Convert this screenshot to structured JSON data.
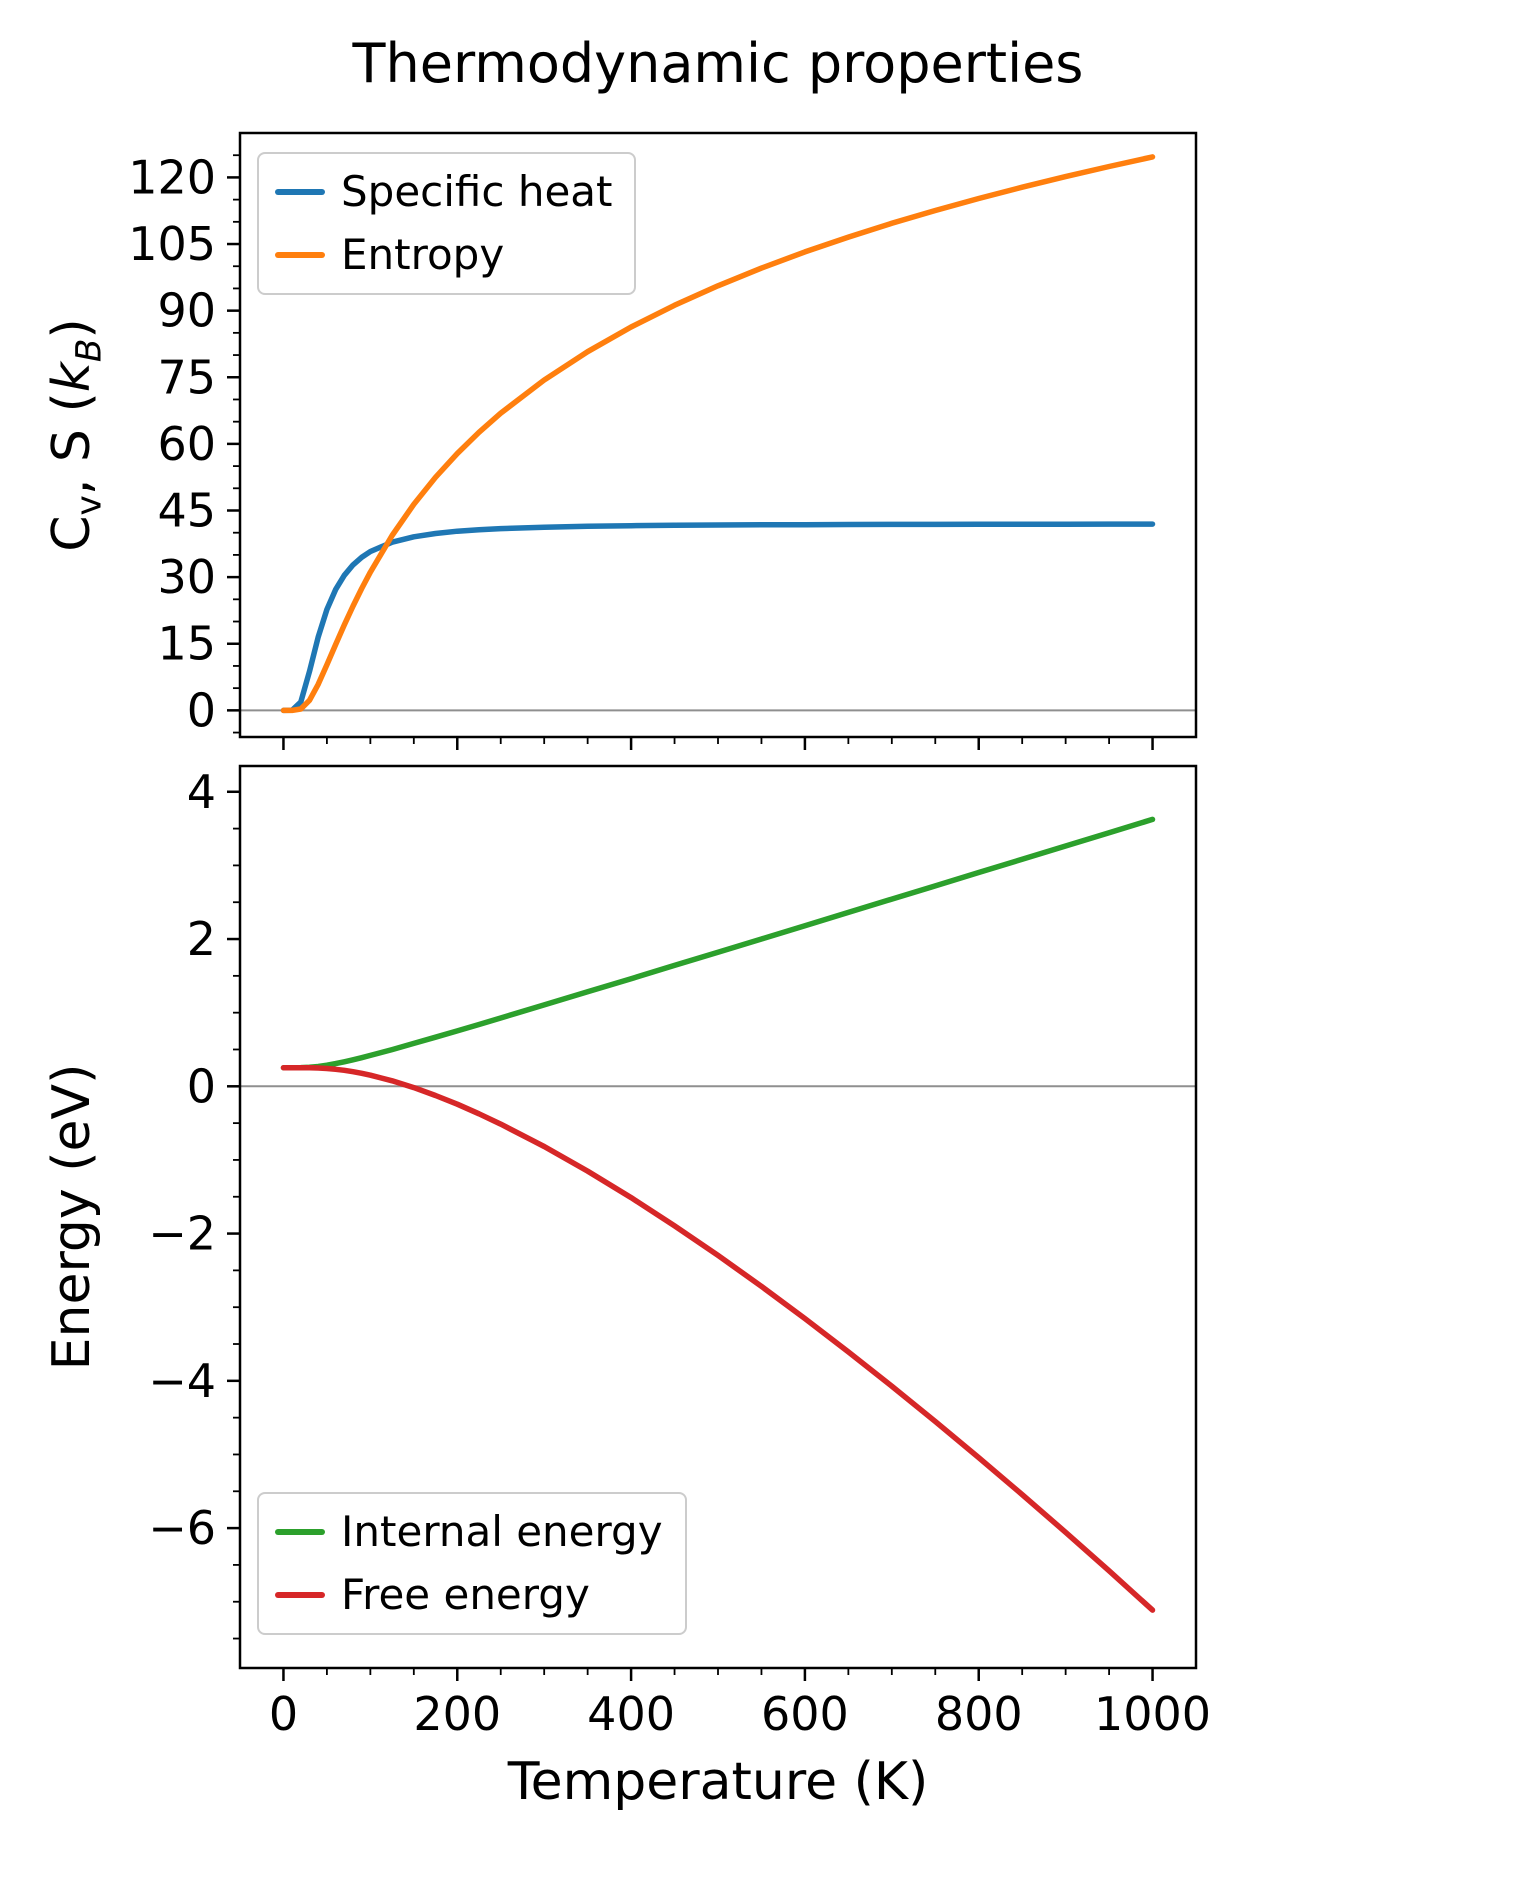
{
  "figure": {
    "title": "Thermodynamic properties",
    "xlabel": "Temperature (K)",
    "background": "#ffffff"
  },
  "colors": {
    "specific_heat": "#1f77b4",
    "entropy": "#ff7f0e",
    "internal_energy": "#2ca02c",
    "free_energy": "#d62728",
    "zero_line": "#8f8f8f",
    "axis": "#000000"
  },
  "chart_data": [
    {
      "type": "line",
      "title": "",
      "ylabel_plain": "Cv, S (kB)",
      "ylabel_segments": [
        {
          "text": "C"
        },
        {
          "text": "v",
          "sub": true
        },
        {
          "text": ", S ("
        },
        {
          "text": "k",
          "italic": true
        },
        {
          "text": "B",
          "sub": true,
          "italic": true
        },
        {
          "text": ")"
        }
      ],
      "xlim": [
        -50,
        1050
      ],
      "ylim": [
        -6,
        130
      ],
      "xticks": [
        0,
        200,
        400,
        600,
        800,
        1000
      ],
      "yticks": [
        0,
        15,
        30,
        45,
        60,
        75,
        90,
        105,
        120
      ],
      "x_minor_step": 50,
      "y_minor_step": 5,
      "zero_line": 0,
      "grid": false,
      "legend_position": "upper-left",
      "x": [
        0,
        10,
        20,
        30,
        40,
        50,
        60,
        70,
        80,
        90,
        100,
        125,
        150,
        175,
        200,
        225,
        250,
        300,
        350,
        400,
        450,
        500,
        550,
        600,
        650,
        700,
        750,
        800,
        850,
        900,
        950,
        1000
      ],
      "series": [
        {
          "name": "Specific heat",
          "color": "#1f77b4",
          "values": [
            0,
            0.01,
            1.88,
            8.76,
            16.52,
            22.7,
            27.19,
            30.41,
            32.74,
            34.47,
            35.76,
            37.87,
            39.08,
            39.83,
            40.33,
            40.67,
            40.92,
            41.25,
            41.44,
            41.57,
            41.66,
            41.73,
            41.77,
            41.81,
            41.84,
            41.86,
            41.88,
            41.89,
            41.9,
            41.92,
            41.93,
            41.93
          ]
        },
        {
          "name": "Entropy",
          "color": "#ff7f0e",
          "values": [
            0,
            0,
            0.31,
            2.26,
            5.87,
            10.25,
            14.81,
            19.25,
            23.48,
            27.44,
            31.14,
            39.37,
            46.4,
            52.47,
            57.83,
            62.6,
            66.9,
            74.39,
            80.76,
            86.31,
            91.21,
            95.6,
            99.58,
            103.22,
            106.57,
            109.67,
            112.55,
            115.26,
            117.8,
            120.19,
            122.46,
            124.62
          ]
        }
      ]
    },
    {
      "type": "line",
      "title": "",
      "ylabel_plain": "Energy (eV)",
      "ylabel_segments": [
        {
          "text": "Energy (eV)"
        }
      ],
      "xlim": [
        -50,
        1050
      ],
      "ylim": [
        -7.9,
        4.35
      ],
      "xticks": [
        0,
        200,
        400,
        600,
        800,
        1000
      ],
      "yticks": [
        -6,
        -4,
        -2,
        0,
        2,
        4
      ],
      "x_minor_step": 50,
      "y_minor_step": 0.5,
      "zero_line": 0,
      "grid": false,
      "legend_position": "lower-left",
      "x": [
        0,
        10,
        20,
        30,
        40,
        50,
        60,
        70,
        80,
        90,
        100,
        125,
        150,
        175,
        200,
        225,
        250,
        300,
        350,
        400,
        450,
        500,
        550,
        600,
        650,
        700,
        750,
        800,
        850,
        900,
        950,
        1000
      ],
      "series": [
        {
          "name": "Internal energy",
          "color": "#2ca02c",
          "values": [
            0.253,
            0.253,
            0.254,
            0.258,
            0.269,
            0.286,
            0.308,
            0.333,
            0.36,
            0.389,
            0.419,
            0.499,
            0.582,
            0.667,
            0.753,
            0.84,
            0.928,
            1.105,
            1.284,
            1.462,
            1.642,
            1.821,
            2.001,
            2.181,
            2.362,
            2.542,
            2.722,
            2.903,
            3.083,
            3.264,
            3.444,
            3.625
          ]
        },
        {
          "name": "Free energy",
          "color": "#d62728",
          "values": [
            0.253,
            0.253,
            0.253,
            0.252,
            0.249,
            0.242,
            0.231,
            0.217,
            0.198,
            0.176,
            0.151,
            0.075,
            -0.018,
            -0.125,
            -0.243,
            -0.373,
            -0.513,
            -0.818,
            -1.152,
            -1.512,
            -1.895,
            -2.297,
            -2.718,
            -3.155,
            -3.607,
            -4.073,
            -4.552,
            -5.042,
            -5.545,
            -6.057,
            -6.58,
            -7.113
          ]
        }
      ]
    }
  ]
}
